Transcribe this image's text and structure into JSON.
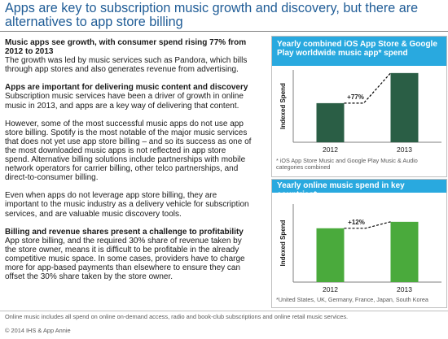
{
  "title": "Apps are key to subscription music growth and discovery, but there are alternatives to app store billing",
  "paragraphs": [
    {
      "heading": "Music apps see growth, with consumer spend rising 77% from 2012 to 2013",
      "text": "The growth was led by music services such as Pandora, which bills through app stores and also generates revenue from advertising."
    },
    {
      "heading": "Apps are important for delivering music content and discovery",
      "text": "Subscription music services have been a driver of growth in online music in 2013, and apps are a key way of delivering that content."
    },
    {
      "heading": "",
      "text": "However, some of the most successful music apps do not use app store billing. Spotify is the most notable of the major music services that does not yet use app store billing – and so its success as one of the most downloaded music apps is not reflected in app store spend. Alternative billing solutions include partnerships with mobile network operators for carrier billing, other telco partnerships, and direct-to-consumer billing."
    },
    {
      "heading": "",
      "text": "Even when apps do not leverage app store billing, they are important to the music industry as a delivery vehicle for subscription services, and are valuable music discovery tools."
    },
    {
      "heading": "Billing and revenue shares present a challenge to profitability",
      "text": "App store billing, and the required 30% share of revenue taken by the store owner, means it is difficult to be profitable in the already competitive music space. In some cases, providers have to charge more for app-based payments than elsewhere to ensure they can offset the 30% share taken by the store owner."
    }
  ],
  "chart_data": [
    {
      "type": "bar",
      "title": "Yearly combined iOS App Store & Google Play worldwide music app* spend",
      "categories": [
        "2012",
        "2013"
      ],
      "values": [
        100,
        177
      ],
      "ylabel": "Indexed Spend",
      "ylim": [
        0,
        185
      ],
      "annotation": "+77%",
      "bar_color": "#2a5e45",
      "note": "* iOS App Store Music and Google Play Music & Audio categories combined"
    },
    {
      "type": "bar",
      "title": "Yearly online music spend in key countries*",
      "categories": [
        "2012",
        "2013"
      ],
      "values": [
        100,
        112
      ],
      "ylabel": "Indexed Spend",
      "ylim": [
        0,
        145
      ],
      "annotation": "+12%",
      "bar_color": "#4aaa3c",
      "note": "*United States, UK, Germany, France, Japan, South Korea"
    }
  ],
  "footnote": "Online music includes all spend on online on-demand access, radio and book-club subscriptions and online retail music services.",
  "copyright": "© 2014 IHS & App Annie"
}
